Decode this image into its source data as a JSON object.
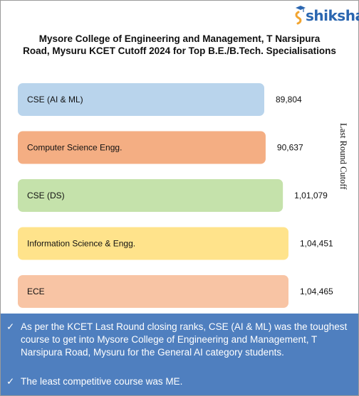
{
  "brand": {
    "name": "shiksha",
    "accent": "#2a66b0"
  },
  "title_lines": [
    "Mysore College of Engineering and Management, T Narsipura",
    "Road, Mysuru KCET Cutoff 2024 for Top B.E./B.Tech. Specialisations"
  ],
  "chart_data": {
    "type": "bar",
    "orientation": "horizontal",
    "ylabel": "Last Round Cutoff",
    "categories": [
      "CSE (AI & ML)",
      "Computer Science Engg.",
      "CSE (DS)",
      "Information Science & Engg.",
      "ECE"
    ],
    "values": [
      89804,
      90637,
      101079,
      104451,
      104465
    ],
    "value_labels": [
      "89,804",
      "90,637",
      "1,01,079",
      "1,04,451",
      "1,04,465"
    ],
    "colors": [
      "#b9d4ec",
      "#f4ae83",
      "#c5e2ab",
      "#ffe38b",
      "#f8c4a4"
    ],
    "grid": false,
    "legend": "none"
  },
  "notes": [
    "As per the KCET Last Round closing ranks, CSE (AI & ML) was the toughest course to get into Mysore College of Engineering and Management, T Narsipura Road, Mysuru for the General AI category students.",
    "The least competitive course was ME."
  ],
  "check_glyph": "✓"
}
